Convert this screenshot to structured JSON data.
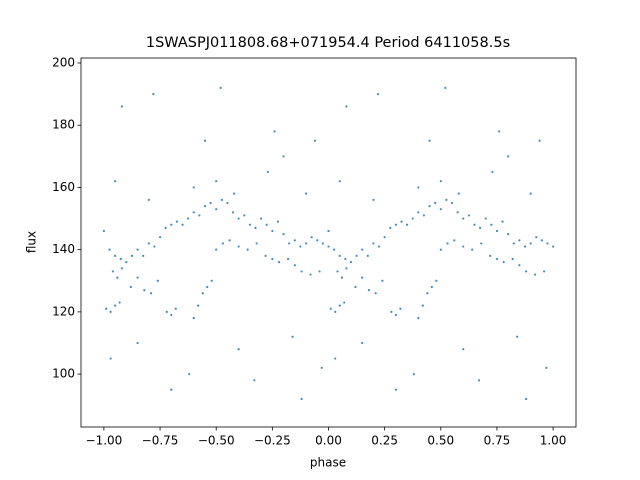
{
  "chart_data": {
    "type": "scatter",
    "title": "1SWASPJ011808.68+071954.4 Period 6411058.5s",
    "xlabel": "phase",
    "ylabel": "flux",
    "color": "#1f77b4",
    "xlim": [
      -1.102,
      1.102
    ],
    "ylim": [
      83,
      201.6
    ],
    "xticks": [
      {
        "value": -1,
        "label": "−1.00"
      },
      {
        "value": -0.75,
        "label": "−0.75"
      },
      {
        "value": -0.5,
        "label": "−0.50"
      },
      {
        "value": -0.25,
        "label": "−0.25"
      },
      {
        "value": 0,
        "label": "0.00"
      },
      {
        "value": 0.25,
        "label": "0.25"
      },
      {
        "value": 0.5,
        "label": "0.50"
      },
      {
        "value": 0.75,
        "label": "0.75"
      },
      {
        "value": 1,
        "label": "1.00"
      }
    ],
    "yticks": [
      100,
      120,
      140,
      160,
      180,
      200
    ],
    "x": [
      -1,
      -0.975,
      -0.95,
      -0.925,
      -0.9,
      -0.875,
      -0.85,
      -0.825,
      -0.8,
      -0.775,
      -0.75,
      -0.725,
      -0.7,
      -0.675,
      -0.65,
      -0.625,
      -0.6,
      -0.575,
      -0.55,
      -0.525,
      -0.5,
      -0.475,
      -0.45,
      -0.425,
      -0.4,
      -0.375,
      -0.35,
      -0.325,
      -0.3,
      -0.275,
      -0.25,
      -0.225,
      -0.2,
      -0.175,
      -0.15,
      -0.125,
      -0.1,
      -0.075,
      -0.05,
      -0.025,
      0,
      0,
      0.025,
      0.05,
      0.075,
      0.1,
      0.125,
      0.15,
      0.175,
      0.2,
      0.225,
      0.25,
      0.275,
      0.3,
      0.325,
      0.35,
      0.375,
      0.4,
      0.425,
      0.45,
      0.475,
      0.5,
      0.525,
      0.55,
      0.575,
      0.6,
      0.625,
      0.65,
      0.675,
      0.7,
      0.725,
      0.75,
      0.775,
      0.8,
      0.825,
      0.85,
      0.875,
      0.9,
      0.925,
      0.95,
      0.975,
      1,
      -0.99,
      -0.97,
      -0.95,
      -0.93,
      -0.96,
      -0.94,
      -0.92,
      -0.88,
      -0.85,
      -0.82,
      -0.79,
      -0.76,
      -0.72,
      -0.7,
      -0.68,
      -0.6,
      -0.58,
      -0.56,
      -0.54,
      -0.52,
      -0.5,
      -0.47,
      -0.44,
      -0.4,
      -0.36,
      -0.32,
      -0.28,
      -0.25,
      -0.22,
      -0.18,
      -0.15,
      -0.12,
      -0.08,
      -0.04,
      0.01,
      0.03,
      0.05,
      0.07,
      0.04,
      0.06,
      0.08,
      0.12,
      0.15,
      0.18,
      0.21,
      0.24,
      0.28,
      0.3,
      0.32,
      0.4,
      0.42,
      0.44,
      0.46,
      0.48,
      0.5,
      0.53,
      0.56,
      0.6,
      0.64,
      0.68,
      0.72,
      0.75,
      0.78,
      0.82,
      0.85,
      0.88,
      0.92,
      0.96,
      -0.6,
      -0.5,
      -0.42,
      -0.27,
      -0.2,
      -0.1,
      -0.8,
      -0.95,
      0.4,
      0.5,
      0.58,
      0.73,
      0.8,
      0.9,
      0.2,
      0.05,
      -0.97,
      -0.92,
      -0.85,
      -0.78,
      -0.7,
      -0.62,
      -0.55,
      -0.48,
      -0.4,
      -0.33,
      -0.24,
      -0.16,
      -0.12,
      -0.06,
      -0.03,
      0.03,
      0.08,
      0.15,
      0.22,
      0.3,
      0.38,
      0.45,
      0.52,
      0.6,
      0.67,
      0.76,
      0.84,
      0.88,
      0.94,
      0.97
    ],
    "values": [
      146,
      140,
      138,
      137,
      136,
      138,
      140,
      138,
      142,
      141,
      144,
      147,
      148,
      149,
      148,
      150,
      152,
      151,
      154,
      155,
      153,
      156,
      155,
      152,
      150,
      151,
      148,
      147,
      150,
      148,
      146,
      149,
      145,
      142,
      143,
      141,
      142,
      144,
      143,
      142,
      141,
      146,
      140,
      138,
      137,
      136,
      138,
      140,
      138,
      142,
      141,
      144,
      147,
      148,
      149,
      148,
      150,
      152,
      151,
      154,
      155,
      153,
      156,
      155,
      152,
      150,
      151,
      148,
      147,
      150,
      148,
      146,
      149,
      145,
      142,
      143,
      141,
      142,
      144,
      143,
      142,
      141,
      121,
      120,
      122,
      123,
      133,
      131,
      134,
      128,
      131,
      127,
      126,
      130,
      120,
      119,
      121,
      118,
      122,
      126,
      128,
      130,
      140,
      142,
      143,
      141,
      140,
      142,
      138,
      137,
      136,
      137,
      135,
      133,
      132,
      133,
      121,
      120,
      122,
      123,
      133,
      131,
      134,
      128,
      131,
      127,
      126,
      130,
      120,
      119,
      121,
      118,
      122,
      126,
      128,
      130,
      140,
      142,
      143,
      141,
      140,
      142,
      138,
      137,
      136,
      137,
      135,
      133,
      132,
      133,
      160,
      162,
      158,
      165,
      170,
      158,
      156,
      162,
      160,
      162,
      158,
      165,
      170,
      158,
      156,
      162,
      105,
      186,
      110,
      190,
      95,
      100,
      175,
      192,
      108,
      98,
      178,
      112,
      92,
      175,
      102,
      105,
      186,
      110,
      190,
      95,
      100,
      175,
      192,
      108,
      98,
      178,
      112,
      92,
      175,
      102
    ]
  }
}
